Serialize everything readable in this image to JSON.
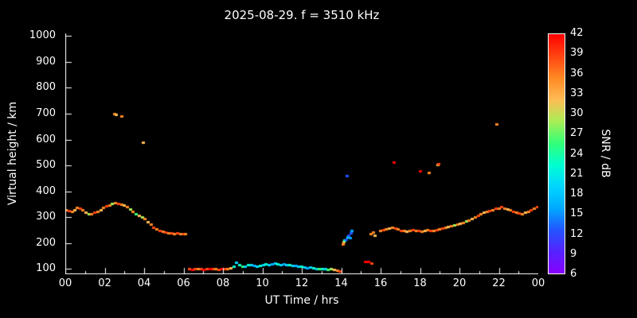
{
  "colors": {
    "background": "#000000",
    "axis": "#ffffff",
    "text": "#ffffff"
  },
  "chart_data": {
    "type": "scatter",
    "title": "2025-08-29. f = 3510 kHz",
    "xlabel": "UT Time / hrs",
    "ylabel": "Virtual height / km",
    "colorbar_label": "SNR / dB",
    "xlim": [
      0,
      24
    ],
    "ylim": [
      80,
      1010
    ],
    "x_tick_values": [
      0,
      2,
      4,
      6,
      8,
      10,
      12,
      14,
      16,
      18,
      20,
      22,
      24
    ],
    "x_tick_labels": [
      "00",
      "02",
      "04",
      "06",
      "08",
      "10",
      "12",
      "14",
      "16",
      "18",
      "20",
      "22",
      "00"
    ],
    "x_minor_step": 1,
    "y_tick_values": [
      100,
      200,
      300,
      400,
      500,
      600,
      700,
      800,
      900,
      1000
    ],
    "grid": false,
    "colorbar": {
      "min": 6,
      "max": 42,
      "tick_step": 3,
      "ticks": [
        6,
        9,
        12,
        15,
        18,
        21,
        24,
        27,
        30,
        33,
        36,
        39,
        42
      ],
      "segment_colors": [
        "#8800ff",
        "#5522ff",
        "#2255ff",
        "#00aaff",
        "#00d5ff",
        "#00ffd0",
        "#33ff77",
        "#aaee55",
        "#ffbb55",
        "#ff8822",
        "#ff4411",
        "#ff0000"
      ]
    },
    "points_format": [
      "ut_hour",
      "virtual_height_km",
      "snr_db"
    ],
    "points": [
      [
        0.05,
        330,
        34
      ],
      [
        0.2,
        326,
        37
      ],
      [
        0.35,
        322,
        34
      ],
      [
        0.5,
        330,
        31
      ],
      [
        0.6,
        338,
        34
      ],
      [
        0.75,
        336,
        37
      ],
      [
        0.9,
        328,
        34
      ],
      [
        1.05,
        318,
        31
      ],
      [
        1.2,
        312,
        28
      ],
      [
        1.35,
        314,
        34
      ],
      [
        1.5,
        318,
        37
      ],
      [
        1.65,
        324,
        34
      ],
      [
        1.8,
        330,
        31
      ],
      [
        1.95,
        338,
        34
      ],
      [
        2.1,
        344,
        37
      ],
      [
        2.25,
        348,
        34
      ],
      [
        2.4,
        352,
        28
      ],
      [
        2.55,
        356,
        34
      ],
      [
        2.7,
        352,
        37
      ],
      [
        2.85,
        350,
        34
      ],
      [
        3.0,
        348,
        31
      ],
      [
        3.15,
        340,
        34
      ],
      [
        3.3,
        332,
        28
      ],
      [
        3.45,
        324,
        34
      ],
      [
        3.6,
        314,
        25
      ],
      [
        3.75,
        306,
        31
      ],
      [
        3.9,
        300,
        28
      ],
      [
        4.05,
        294,
        34
      ],
      [
        4.2,
        284,
        31
      ],
      [
        4.35,
        272,
        34
      ],
      [
        4.5,
        262,
        37
      ],
      [
        4.65,
        255,
        34
      ],
      [
        4.8,
        250,
        37
      ],
      [
        4.95,
        247,
        34
      ],
      [
        5.1,
        244,
        37
      ],
      [
        5.25,
        241,
        34
      ],
      [
        5.4,
        239,
        37
      ],
      [
        5.55,
        238,
        34
      ],
      [
        5.7,
        240,
        37
      ],
      [
        5.85,
        237,
        34
      ],
      [
        6.0,
        236,
        37
      ],
      [
        6.1,
        238,
        34
      ],
      [
        2.5,
        700,
        34
      ],
      [
        2.6,
        697,
        31
      ],
      [
        2.85,
        690,
        34
      ],
      [
        3.95,
        588,
        31
      ],
      [
        6.3,
        102,
        37
      ],
      [
        6.45,
        98,
        40
      ],
      [
        6.6,
        100,
        37
      ],
      [
        6.75,
        103,
        34
      ],
      [
        6.9,
        100,
        37
      ],
      [
        7.05,
        98,
        40
      ],
      [
        7.2,
        100,
        37
      ],
      [
        7.35,
        101,
        40
      ],
      [
        7.5,
        103,
        37
      ],
      [
        7.65,
        100,
        34
      ],
      [
        7.8,
        98,
        37
      ],
      [
        7.95,
        100,
        40
      ],
      [
        8.1,
        102,
        37
      ],
      [
        8.25,
        100,
        34
      ],
      [
        8.4,
        104,
        31
      ],
      [
        8.55,
        110,
        22
      ],
      [
        8.7,
        126,
        19
      ],
      [
        8.85,
        116,
        22
      ],
      [
        9.0,
        110,
        25
      ],
      [
        9.15,
        112,
        19
      ],
      [
        9.3,
        116,
        22
      ],
      [
        9.45,
        118,
        19
      ],
      [
        9.6,
        115,
        16
      ],
      [
        9.75,
        112,
        19
      ],
      [
        9.9,
        115,
        22
      ],
      [
        10.05,
        118,
        19
      ],
      [
        10.2,
        120,
        22
      ],
      [
        10.35,
        118,
        19
      ],
      [
        10.5,
        121,
        16
      ],
      [
        10.65,
        122,
        19
      ],
      [
        10.8,
        120,
        22
      ],
      [
        10.95,
        118,
        19
      ],
      [
        11.1,
        120,
        16
      ],
      [
        11.25,
        118,
        19
      ],
      [
        11.4,
        116,
        22
      ],
      [
        11.55,
        113,
        19
      ],
      [
        11.7,
        115,
        16
      ],
      [
        11.85,
        112,
        19
      ],
      [
        12.0,
        110,
        22
      ],
      [
        12.15,
        108,
        19
      ],
      [
        12.3,
        106,
        16
      ],
      [
        12.45,
        108,
        19
      ],
      [
        12.6,
        105,
        22
      ],
      [
        12.75,
        102,
        19
      ],
      [
        12.9,
        100,
        25
      ],
      [
        13.05,
        102,
        22
      ],
      [
        13.2,
        100,
        19
      ],
      [
        13.35,
        98,
        25
      ],
      [
        13.5,
        100,
        28
      ],
      [
        13.65,
        97,
        31
      ],
      [
        13.8,
        95,
        34
      ],
      [
        13.95,
        92,
        37
      ],
      [
        14.1,
        196,
        34
      ],
      [
        14.15,
        206,
        31
      ],
      [
        14.2,
        212,
        22
      ],
      [
        14.25,
        216,
        13
      ],
      [
        14.35,
        224,
        19
      ],
      [
        14.4,
        230,
        13
      ],
      [
        14.45,
        220,
        16
      ],
      [
        14.5,
        240,
        13
      ],
      [
        14.55,
        250,
        16
      ],
      [
        14.3,
        462,
        13
      ],
      [
        15.25,
        130,
        40
      ],
      [
        15.4,
        128,
        40
      ],
      [
        15.55,
        122,
        37
      ],
      [
        15.5,
        236,
        34
      ],
      [
        15.65,
        242,
        34
      ],
      [
        15.7,
        230,
        31
      ],
      [
        16.7,
        512,
        40
      ],
      [
        18.0,
        478,
        40
      ],
      [
        18.45,
        472,
        34
      ],
      [
        18.9,
        505,
        31
      ],
      [
        18.95,
        508,
        37
      ],
      [
        21.9,
        660,
        34
      ],
      [
        16.0,
        248,
        34
      ],
      [
        16.15,
        252,
        37
      ],
      [
        16.3,
        255,
        34
      ],
      [
        16.45,
        258,
        31
      ],
      [
        16.6,
        262,
        34
      ],
      [
        16.75,
        258,
        37
      ],
      [
        16.9,
        255,
        34
      ],
      [
        17.05,
        250,
        37
      ],
      [
        17.2,
        248,
        34
      ],
      [
        17.35,
        245,
        31
      ],
      [
        17.5,
        248,
        34
      ],
      [
        17.65,
        252,
        37
      ],
      [
        17.8,
        250,
        34
      ],
      [
        17.95,
        248,
        37
      ],
      [
        18.1,
        245,
        34
      ],
      [
        18.25,
        248,
        31
      ],
      [
        18.4,
        252,
        34
      ],
      [
        18.55,
        250,
        37
      ],
      [
        18.7,
        248,
        34
      ],
      [
        18.85,
        252,
        37
      ],
      [
        19.0,
        255,
        34
      ],
      [
        19.15,
        258,
        37
      ],
      [
        19.3,
        262,
        34
      ],
      [
        19.45,
        265,
        31
      ],
      [
        19.6,
        268,
        34
      ],
      [
        19.75,
        270,
        28
      ],
      [
        19.9,
        272,
        34
      ],
      [
        20.05,
        275,
        31
      ],
      [
        20.2,
        280,
        34
      ],
      [
        20.35,
        285,
        28
      ],
      [
        20.5,
        290,
        34
      ],
      [
        20.65,
        295,
        31
      ],
      [
        20.8,
        302,
        34
      ],
      [
        20.95,
        308,
        37
      ],
      [
        21.1,
        312,
        34
      ],
      [
        21.25,
        318,
        31
      ],
      [
        21.4,
        322,
        34
      ],
      [
        21.55,
        326,
        37
      ],
      [
        21.7,
        330,
        34
      ],
      [
        21.85,
        334,
        37
      ],
      [
        22.0,
        336,
        34
      ],
      [
        22.15,
        340,
        37
      ],
      [
        22.3,
        336,
        34
      ],
      [
        22.45,
        332,
        31
      ],
      [
        22.6,
        328,
        34
      ],
      [
        22.75,
        324,
        37
      ],
      [
        22.9,
        320,
        34
      ],
      [
        23.05,
        316,
        37
      ],
      [
        23.2,
        314,
        34
      ],
      [
        23.35,
        318,
        31
      ],
      [
        23.5,
        324,
        34
      ],
      [
        23.65,
        330,
        37
      ],
      [
        23.8,
        336,
        34
      ],
      [
        23.95,
        342,
        37
      ]
    ]
  }
}
